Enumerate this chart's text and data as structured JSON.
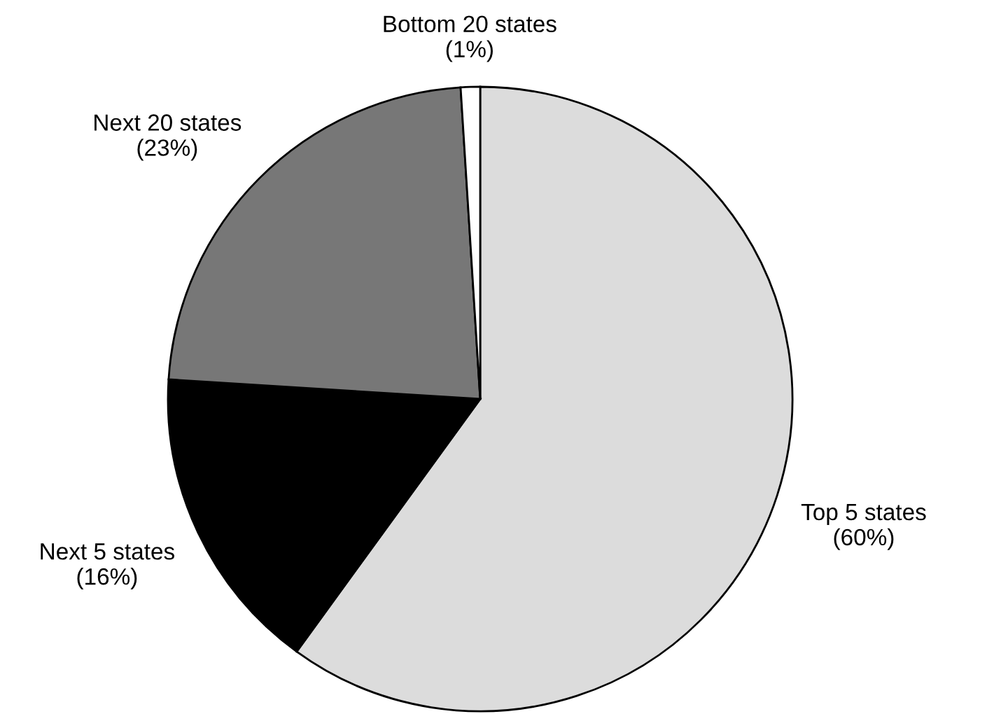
{
  "chart_data": {
    "type": "pie",
    "categories": [
      "Top 5 states",
      "Next 5 states",
      "Next 20 states",
      "Bottom 20 states"
    ],
    "values": [
      60,
      16,
      23,
      1
    ],
    "value_labels": [
      "(60%)",
      "(16%)",
      "(23%)",
      "(1%)"
    ],
    "colors": [
      "#dcdcdc",
      "#000000",
      "#777777",
      "#ffffff"
    ]
  }
}
